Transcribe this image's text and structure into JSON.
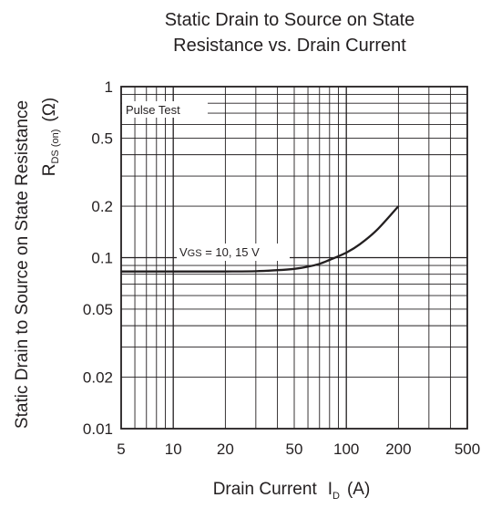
{
  "chart_data": {
    "type": "line",
    "title_lines": [
      "Static Drain to Source on State",
      "Resistance vs. Drain Current"
    ],
    "xlabel": "Drain Current",
    "xlabel_symbol": "I",
    "xlabel_sub": "D",
    "xlabel_unit": "(A)",
    "ylabel_line1": "Static Drain to Source on State Resistance",
    "ylabel_symbol": "R",
    "ylabel_sub": "DS (on)",
    "ylabel_unit": "(Ω)",
    "x_scale": "log",
    "y_scale": "log",
    "xlim": [
      5,
      500
    ],
    "ylim": [
      0.01,
      1
    ],
    "x_ticks": [
      5,
      10,
      20,
      50,
      100,
      200,
      500
    ],
    "x_tick_labels": [
      "5",
      "10",
      "20",
      "50",
      "100",
      "200",
      "500"
    ],
    "y_ticks": [
      0.01,
      0.02,
      0.05,
      0.1,
      0.2,
      0.5,
      1
    ],
    "y_tick_labels": [
      "0.01",
      "0.02",
      "0.05",
      "0.1",
      "0.2",
      "0.5",
      "1"
    ],
    "grid": true,
    "annotations": {
      "pulse_test": "Pulse Test",
      "vgs_prefix": "V",
      "vgs_sub": "GS",
      "vgs_value": " = 10, 15 V"
    },
    "series": [
      {
        "x": [
          5,
          10,
          20,
          30,
          40,
          50,
          60,
          70,
          80,
          100,
          120,
          150,
          200
        ],
        "y": [
          0.083,
          0.083,
          0.083,
          0.0833,
          0.0845,
          0.086,
          0.0885,
          0.092,
          0.097,
          0.107,
          0.12,
          0.145,
          0.2
        ]
      }
    ]
  }
}
